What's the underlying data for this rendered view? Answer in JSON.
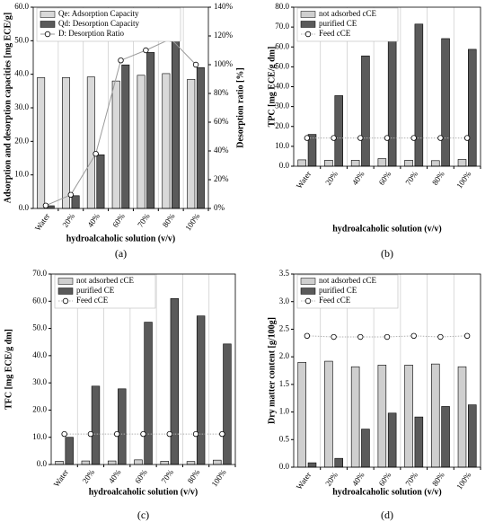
{
  "chart_data": [
    {
      "type": "bar",
      "panel_label": "(a)",
      "x_label": "hydroalcaholic solution (v/v)",
      "y_label": "Adsorption and desorption capacities [mg ECE/g]",
      "y2_label": "Desorption ratio [%]",
      "categories": [
        "Water",
        "20%",
        "40%",
        "60%",
        "70%",
        "80%",
        "100%"
      ],
      "ylim": [
        0,
        60
      ],
      "yticks": [
        {
          "value": 0,
          "label": "0.0"
        },
        {
          "value": 10,
          "label": "10.0"
        },
        {
          "value": 20,
          "label": "20.0"
        },
        {
          "value": 30,
          "label": "30.0"
        },
        {
          "value": 40,
          "label": "40.0"
        },
        {
          "value": 50,
          "label": "50.0"
        },
        {
          "value": 60,
          "label": "60.0"
        }
      ],
      "y2lim": [
        0,
        140
      ],
      "y2ticks": [
        {
          "value": 0,
          "label": "0%"
        },
        {
          "value": 20,
          "label": "20%"
        },
        {
          "value": 40,
          "label": "40%"
        },
        {
          "value": 60,
          "label": "60%"
        },
        {
          "value": 80,
          "label": "80%"
        },
        {
          "value": 100,
          "label": "100%"
        },
        {
          "value": 120,
          "label": "120%"
        },
        {
          "value": 140,
          "label": "140%"
        }
      ],
      "category_separators": true,
      "series": [
        {
          "name": "Qe: Adsorption Capacity",
          "type": "bar",
          "color": "#d9d9d9",
          "values": [
            39,
            39,
            39.2,
            38,
            39.7,
            40.2,
            38.5
          ]
        },
        {
          "name": "Qd: Desorption Capacity",
          "type": "bar",
          "color": "#5a5a5a",
          "values": [
            0.8,
            3.8,
            16,
            42.8,
            46.5,
            50,
            42
          ]
        },
        {
          "name": "D: Desorption Ratio",
          "type": "line",
          "line_style": "solid",
          "color": "#9a9a9a",
          "axis": "y2",
          "values": [
            2,
            9.5,
            38,
            103,
            110,
            118,
            100
          ]
        }
      ]
    },
    {
      "type": "bar",
      "panel_label": "(b)",
      "x_label": "hydroalcaholic solution (v/v)",
      "y_label": "TPC [mg ECE/g dm]",
      "categories": [
        "Water",
        "20%",
        "40%",
        "60%",
        "70%",
        "80%",
        "100%"
      ],
      "ylim": [
        0,
        80
      ],
      "yticks": [
        {
          "value": 0,
          "label": "0.0"
        },
        {
          "value": 10,
          "label": "10.0"
        },
        {
          "value": 20,
          "label": "20.0"
        },
        {
          "value": 30,
          "label": "30.0"
        },
        {
          "value": 40,
          "label": "40.0"
        },
        {
          "value": 50,
          "label": "50.0"
        },
        {
          "value": 60,
          "label": "60.0"
        },
        {
          "value": 70,
          "label": "70.0"
        },
        {
          "value": 80,
          "label": "80.0"
        }
      ],
      "category_separators": true,
      "series": [
        {
          "name": "not adsorbed cCE",
          "type": "bar",
          "color": "#cfcfcf",
          "values": [
            3.2,
            3,
            3,
            3.8,
            3,
            2.8,
            3.4
          ]
        },
        {
          "name": "purified CE",
          "type": "bar",
          "color": "#5a5a5a",
          "values": [
            16,
            35.5,
            55.5,
            63,
            71.5,
            64.2,
            58.8
          ]
        },
        {
          "name": "Feed cCE",
          "type": "line",
          "line_style": "dotted",
          "color": "#b0b0b0",
          "values": [
            14.2,
            14.2,
            14.2,
            14.2,
            14.2,
            14.2,
            14.2
          ]
        }
      ]
    },
    {
      "type": "bar",
      "panel_label": "(c)",
      "x_label": "hydroalcaholic solution (v/v)",
      "y_label": "TFC [mg ECE/g dm]",
      "categories": [
        "Water",
        "20%",
        "40%",
        "60%",
        "70%",
        "80%",
        "100%"
      ],
      "ylim": [
        0,
        70
      ],
      "yticks": [
        {
          "value": 0,
          "label": "0.0"
        },
        {
          "value": 10,
          "label": "10.0"
        },
        {
          "value": 20,
          "label": "20.0"
        },
        {
          "value": 30,
          "label": "30.0"
        },
        {
          "value": 40,
          "label": "40.0"
        },
        {
          "value": 50,
          "label": "50.0"
        },
        {
          "value": 60,
          "label": "60.0"
        },
        {
          "value": 70,
          "label": "70.0"
        }
      ],
      "category_separators": true,
      "series": [
        {
          "name": "not adsorbed cCE",
          "type": "bar",
          "color": "#cfcfcf",
          "values": [
            1.2,
            1.3,
            1.3,
            1.7,
            1.2,
            1.1,
            1.6
          ]
        },
        {
          "name": "purified CE",
          "type": "bar",
          "color": "#5a5a5a",
          "values": [
            10,
            28.8,
            27.8,
            52.3,
            61,
            54.6,
            44.3
          ]
        },
        {
          "name": "Feed cCE",
          "type": "line",
          "line_style": "dotted",
          "color": "#b0b0b0",
          "values": [
            11.2,
            11.2,
            11.2,
            11.2,
            11.2,
            11.2,
            11.2
          ]
        }
      ]
    },
    {
      "type": "bar",
      "panel_label": "(d)",
      "x_label": "hydroalcaholic solution (v/v)",
      "y_label": "Dry matter content [g/100g]",
      "categories": [
        "Water",
        "20%",
        "40%",
        "60%",
        "70%",
        "80%",
        "100%"
      ],
      "ylim": [
        0,
        3.5
      ],
      "yticks": [
        {
          "value": 0,
          "label": "0.0"
        },
        0.5,
        {
          "value": 1,
          "label": "1.0"
        },
        1.5,
        {
          "value": 2,
          "label": "2.0"
        },
        2.5,
        {
          "value": 3,
          "label": "3.0"
        },
        3.5
      ],
      "category_separators": true,
      "series": [
        {
          "name": "not adsorbed cCE",
          "type": "bar",
          "color": "#cfcfcf",
          "values": [
            1.9,
            1.92,
            1.82,
            1.85,
            1.85,
            1.87,
            1.82
          ]
        },
        {
          "name": "purified CE",
          "type": "bar",
          "color": "#5a5a5a",
          "values": [
            0.08,
            0.16,
            0.69,
            0.98,
            0.91,
            1.1,
            1.13
          ]
        },
        {
          "name": "Feed cCE",
          "type": "line",
          "line_style": "dotted",
          "color": "#b0b0b0",
          "values": [
            2.38,
            2.36,
            2.36,
            2.36,
            2.38,
            2.36,
            2.38
          ]
        }
      ]
    }
  ]
}
